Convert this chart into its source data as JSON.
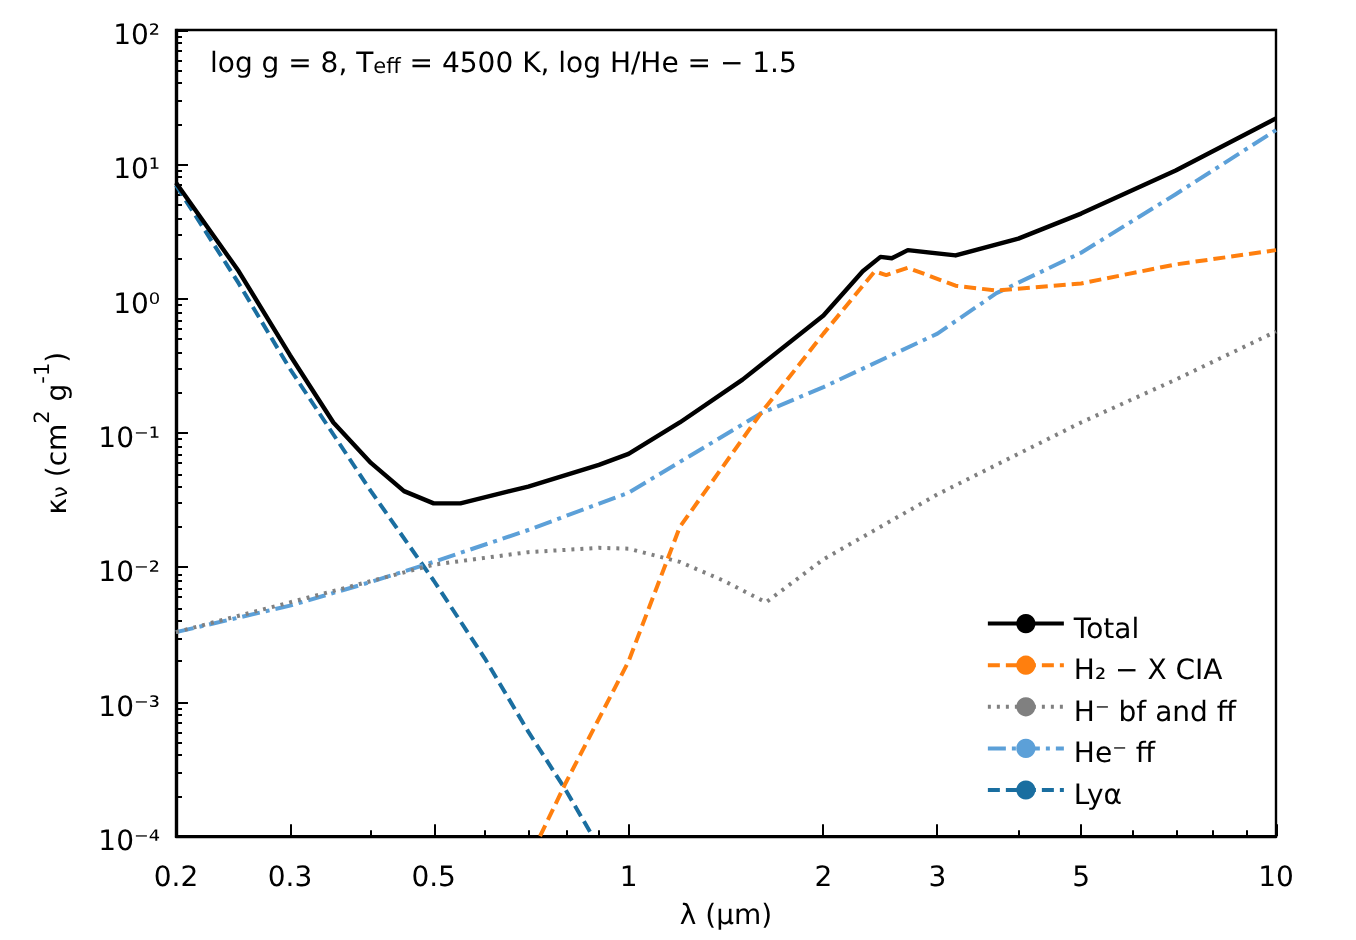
{
  "chart_data": {
    "type": "line",
    "xlabel": "λ (μm)",
    "ylabel": "κ$_{ν}$ (cm$^{2}$ g$^{-1}$)",
    "annotations": [
      "log g = 8, T$_{eff}$ = 4500 K, log H/He = − 1.5"
    ],
    "log": "xy",
    "xlim": [
      0.2,
      10
    ],
    "ylim": [
      0.0001,
      100
    ],
    "xticks": [
      0.2,
      0.3,
      0.5,
      1,
      2,
      3,
      5,
      10
    ],
    "yticks": [
      {
        "value": 0.0001,
        "label": "10⁻⁴"
      },
      {
        "value": 0.001,
        "label": "10⁻³"
      },
      {
        "value": 0.01,
        "label": "10⁻²"
      },
      {
        "value": 0.1,
        "label": "10⁻¹"
      },
      {
        "value": 1,
        "label": "10⁰"
      },
      {
        "value": 10,
        "label": "10¹"
      },
      {
        "value": 100,
        "label": "10²"
      }
    ],
    "grid": false,
    "legend": "bottom right",
    "marker": "none",
    "series": [
      {
        "name": "Total",
        "color": "#000000",
        "line_style": "solid",
        "x": [
          0.2,
          0.25,
          0.3,
          0.35,
          0.4,
          0.45,
          0.5,
          0.55,
          0.7,
          0.9,
          1,
          1.2,
          1.5,
          2,
          2.3,
          2.45,
          2.55,
          2.7,
          3.2,
          4,
          5,
          7,
          10
        ],
        "values": [
          7.3,
          1.6,
          0.38,
          0.12,
          0.06,
          0.037,
          0.03,
          0.03,
          0.04,
          0.058,
          0.07,
          0.12,
          0.25,
          0.75,
          1.6,
          2.05,
          2,
          2.3,
          2.1,
          2.8,
          4.3,
          9,
          22
        ]
      },
      {
        "name": "H₂ − X CIA",
        "color": "#ff7f0e",
        "line_style": "dashed",
        "x": [
          0.73,
          0.8,
          1,
          1.2,
          1.6,
          2,
          2.4,
          2.5,
          2.7,
          3.2,
          3.7,
          5,
          7,
          10
        ],
        "values": [
          0.0001,
          0.00025,
          0.002,
          0.02,
          0.14,
          0.55,
          1.6,
          1.5,
          1.7,
          1.25,
          1.15,
          1.3,
          1.8,
          2.3
        ]
      },
      {
        "name": "H⁻ bf and ff",
        "color": "#808080",
        "line_style": "dotted",
        "x": [
          0.2,
          0.3,
          0.5,
          0.7,
          0.9,
          1,
          1.2,
          1.4,
          1.63,
          2,
          3,
          5,
          7,
          10
        ],
        "values": [
          0.0033,
          0.0055,
          0.0105,
          0.013,
          0.014,
          0.0138,
          0.011,
          0.008,
          0.0055,
          0.0115,
          0.035,
          0.12,
          0.25,
          0.57
        ]
      },
      {
        "name": "He⁻ ff",
        "color": "#5ca0d8",
        "line_style": "dashdot",
        "x": [
          0.2,
          0.3,
          0.4,
          0.5,
          0.7,
          1,
          1.6,
          2,
          3,
          3.7,
          5,
          7,
          10
        ],
        "values": [
          0.0033,
          0.0052,
          0.0078,
          0.011,
          0.019,
          0.036,
          0.14,
          0.22,
          0.55,
          1.1,
          2.2,
          6,
          18
        ]
      },
      {
        "name": "Lyα",
        "color": "#1a6ea0",
        "line_style": "dashed",
        "x": [
          0.2,
          0.25,
          0.3,
          0.4,
          0.5,
          0.6,
          0.7,
          0.8,
          0.88
        ],
        "values": [
          7,
          1.3,
          0.3,
          0.037,
          0.008,
          0.0021,
          0.0006,
          0.00022,
          0.0001
        ]
      }
    ]
  }
}
